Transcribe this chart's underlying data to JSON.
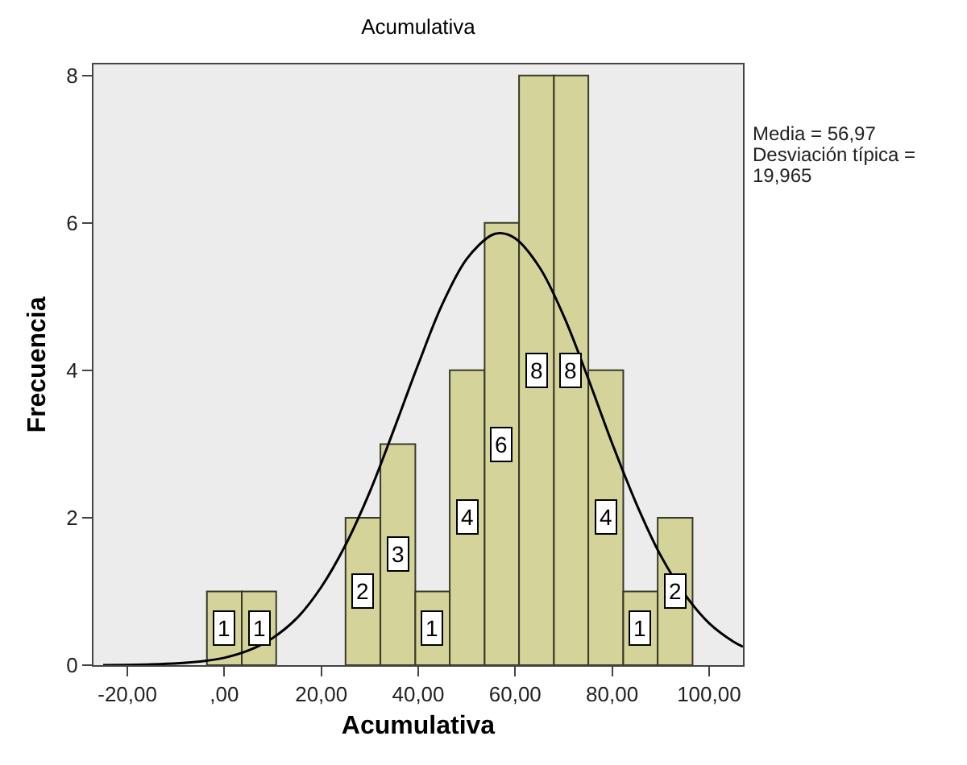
{
  "chart_data": {
    "type": "histogram",
    "title": "Acumulativa",
    "xlabel": "Acumulativa",
    "ylabel": "Frecuencia",
    "bins": [
      -3.6,
      3.6,
      10.7,
      25.0,
      32.2,
      39.4,
      46.5,
      53.7,
      60.8,
      68.0,
      75.1,
      82.3,
      89.4,
      96.6
    ],
    "values": [
      1,
      1,
      0,
      2,
      3,
      1,
      4,
      6,
      8,
      8,
      4,
      1,
      2
    ],
    "value_labels": [
      "1",
      "1",
      null,
      "2",
      "3",
      "1",
      "4",
      "6",
      "8",
      "8",
      "4",
      "1",
      "2"
    ],
    "color": "#d4d49a",
    "series": [
      {
        "type": "line",
        "color": "#000000",
        "x": [
          -25,
          -15,
          -5,
          0,
          5,
          10,
          15,
          20,
          25,
          30,
          35,
          40,
          45,
          50,
          55,
          57,
          60,
          65,
          70,
          75,
          80,
          85,
          90,
          95,
          100,
          105,
          107
        ],
        "values": [
          0.0,
          0.01,
          0.05,
          0.1,
          0.2,
          0.37,
          0.64,
          1.06,
          1.63,
          2.35,
          3.2,
          4.08,
          4.9,
          5.51,
          5.83,
          5.86,
          5.79,
          5.4,
          4.74,
          3.9,
          3.01,
          2.19,
          1.49,
          0.96,
          0.57,
          0.32,
          0.25
        ]
      }
    ],
    "annotations": [
      "Media = 56,97",
      "Desviación típica = 19,965"
    ],
    "xlim": [
      -27,
      107
    ],
    "xticks": [
      {
        "value": -20,
        "label": "-20,00"
      },
      {
        "value": 0,
        "label": ",00"
      },
      {
        "value": 20,
        "label": "20,00"
      },
      {
        "value": 40,
        "label": "40,00"
      },
      {
        "value": 60,
        "label": "60,00"
      },
      {
        "value": 80,
        "label": "80,00"
      },
      {
        "value": 100,
        "label": "100,00"
      }
    ],
    "ylim": [
      0,
      8.15
    ],
    "yticks": [
      0,
      2,
      4,
      6,
      8
    ]
  }
}
